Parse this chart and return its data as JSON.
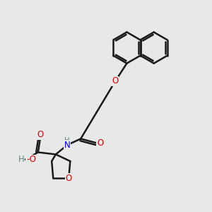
{
  "bg_color": "#e8e8e8",
  "bond_color": "#1a1a1a",
  "bond_width": 1.8,
  "atom_colors": {
    "O": "#cc0000",
    "N": "#0000cc",
    "C": "#1a1a1a",
    "H": "#5a8a8a"
  },
  "font_size": 8.5,
  "nap_ring_r": 0.75,
  "thf_ring_r": 0.52
}
